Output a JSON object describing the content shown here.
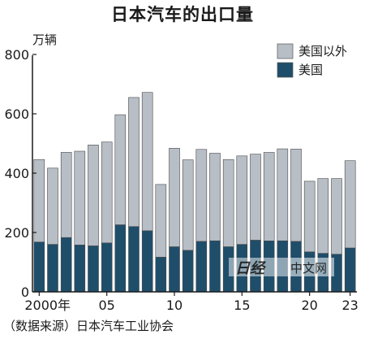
{
  "chart_data": {
    "type": "bar",
    "stacked": true,
    "title": "日本汽车的出口量",
    "unit": "万辆",
    "categories": [
      "2000",
      "2001",
      "2002",
      "2003",
      "2004",
      "2005",
      "2006",
      "2007",
      "2008",
      "2009",
      "2010",
      "2011",
      "2012",
      "2013",
      "2014",
      "2015",
      "2016",
      "2017",
      "2018",
      "2019",
      "2020",
      "2021",
      "2022",
      "2023"
    ],
    "x_tick_labels": [
      {
        "index": 0,
        "label": "2000年"
      },
      {
        "index": 5,
        "label": "05"
      },
      {
        "index": 10,
        "label": "10"
      },
      {
        "index": 15,
        "label": "15"
      },
      {
        "index": 20,
        "label": "20"
      },
      {
        "index": 23,
        "label": "23"
      }
    ],
    "y_ticks": [
      0,
      200,
      400,
      600,
      800
    ],
    "ylim": [
      0,
      810
    ],
    "grid": false,
    "legend_position": "top-right",
    "series": [
      {
        "name": "美国",
        "color": "#1f4e6b",
        "values": [
          168,
          160,
          183,
          158,
          155,
          165,
          226,
          220,
          206,
          117,
          152,
          140,
          170,
          172,
          152,
          160,
          174,
          172,
          172,
          170,
          135,
          130,
          127,
          148
        ]
      },
      {
        "name": "美国以外",
        "color": "#b8bec6",
        "values": [
          278,
          257,
          287,
          316,
          340,
          340,
          371,
          435,
          466,
          245,
          332,
          305,
          310,
          295,
          294,
          298,
          290,
          298,
          310,
          311,
          238,
          252,
          255,
          294
        ]
      }
    ],
    "totals": [
      446,
      417,
      470,
      474,
      495,
      505,
      597,
      655,
      672,
      362,
      484,
      445,
      480,
      467,
      446,
      458,
      464,
      470,
      482,
      481,
      373,
      382,
      382,
      442
    ]
  },
  "source_note": "（数据来源）日本汽车工业协会",
  "watermark": {
    "logo": "日经",
    "text": "中文网"
  }
}
